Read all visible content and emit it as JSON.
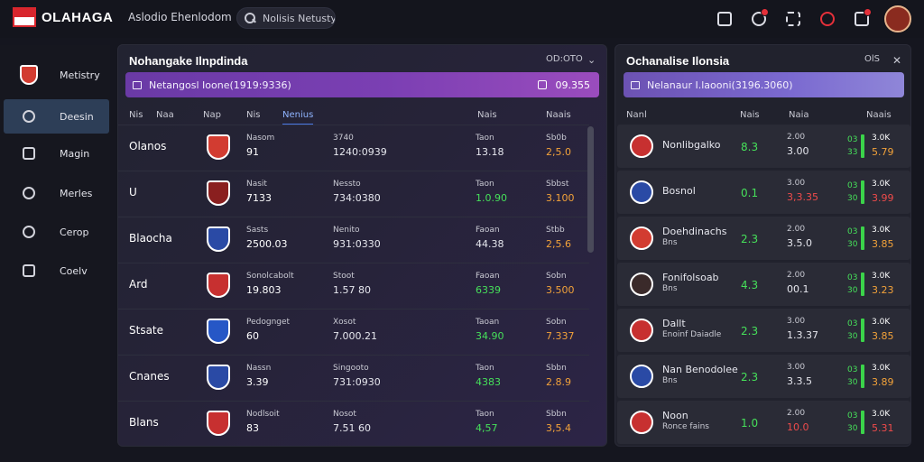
{
  "app": {
    "logo_text": "OLAHAGA",
    "nav_text": "Aslodio Ehenlodom"
  },
  "search": {
    "placeholder": "Nolisis Netusty"
  },
  "sidebar": {
    "items": [
      {
        "label": "Metistry"
      },
      {
        "label": "Deesin"
      },
      {
        "label": "Magin"
      },
      {
        "label": "Merles"
      },
      {
        "label": "Cerop"
      },
      {
        "label": "Coelv"
      }
    ]
  },
  "left_panel": {
    "title": "Nohangake Ilnpdinda",
    "ctrl": "OD:OTO",
    "banner_text": "Netangosl Ioone(1919:9336)",
    "banner_value": "09.355",
    "columns": [
      "Nis",
      "Naa",
      "Nap",
      "Nis",
      "Nenius",
      "Nais",
      "Naais"
    ],
    "rows": [
      {
        "name": "Olanos",
        "t1": "Nasom",
        "t2": "91",
        "l1": "3740",
        "l2": "1240:0939",
        "s1": "Taon",
        "s2": "13.18",
        "o1": "Sb0b",
        "o2": "2,5.0"
      },
      {
        "name": "U",
        "t1": "Nasit",
        "t2": "7133",
        "l1": "Nessto",
        "l2": "734:0380",
        "s1": "Taon",
        "s2": "1.0.90",
        "o1": "Sbbst",
        "o2": "3.100"
      },
      {
        "name": "Blaocha",
        "t1": "Sasts",
        "t2": "2500.03",
        "l1": "Nenito",
        "l2": "931:0330",
        "s1": "Faoan",
        "s2": "44.38",
        "o1": "Stbb",
        "o2": "2,5.6"
      },
      {
        "name": "Ard",
        "t1": "Sonolcabolt",
        "t2": "19.803",
        "l1": "Stoot",
        "l2": "1.57 80",
        "s1": "Faoan",
        "s2": "6339",
        "o1": "Sobn",
        "o2": "3.500"
      },
      {
        "name": "Stsate",
        "t1": "Pedognget",
        "t2": "60",
        "l1": "Xosot",
        "l2": "7.000.21",
        "s1": "Taoan",
        "s2": "34.90",
        "o1": "Sobn",
        "o2": "7.337"
      },
      {
        "name": "Cnanes",
        "t1": "Nassn",
        "t2": "3.39",
        "l1": "Singooto",
        "l2": "731:0930",
        "s1": "Taon",
        "s2": "4383",
        "o1": "Sbbn",
        "o2": "2.8.9"
      },
      {
        "name": "Blans",
        "t1": "Nodlsoit",
        "t2": "83",
        "l1": "Nosot",
        "l2": "7.51 60",
        "s1": "Taon",
        "s2": "4,57",
        "o1": "Sbbn",
        "o2": "3,5.4"
      }
    ]
  },
  "right_panel": {
    "title": "Ochanalise Ilonsia",
    "ctrl": "OlS",
    "banner_text": "Nelanaur I.laooni(3196.3060)",
    "columns": [
      "Nanl",
      "Nais",
      "Naia",
      "Naais"
    ],
    "rows": [
      {
        "name": "Nonlibgalko",
        "sub": "",
        "v1": "8.3",
        "v2a": "2.00",
        "v2b": "3.00",
        "v3a": "3.0K",
        "v3b": "5.79",
        "m1": "03",
        "m2": "33"
      },
      {
        "name": "Bosnol",
        "sub": "",
        "v1": "0.1",
        "v2a": "3.00",
        "v2b": "3,3.35",
        "v3a": "3.0K",
        "v3b": "3.99",
        "m1": "03",
        "m2": "30"
      },
      {
        "name": "Doehdinachs",
        "sub": "Bns",
        "v1": "2.3",
        "v2a": "2.00",
        "v2b": "3.5.0",
        "v3a": "3.0K",
        "v3b": "3.85",
        "m1": "03",
        "m2": "30"
      },
      {
        "name": "Fonifolsoab",
        "sub": "Bns",
        "v1": "4.3",
        "v2a": "2.00",
        "v2b": "00.1",
        "v3a": "3.0K",
        "v3b": "3.23",
        "m1": "03",
        "m2": "30"
      },
      {
        "name": "Dallt",
        "sub": "Enoinf Daiadle",
        "v1": "2.3",
        "v2a": "3.00",
        "v2b": "1.3.37",
        "v3a": "3.0K",
        "v3b": "3.85",
        "m1": "03",
        "m2": "30"
      },
      {
        "name": "Nan Benodolee",
        "sub": "Bns",
        "v1": "2.3",
        "v2a": "3.00",
        "v2b": "3.3.5",
        "v3a": "3.0K",
        "v3b": "3.89",
        "m1": "03",
        "m2": "30"
      },
      {
        "name": "Noon",
        "sub": "Ronce fains",
        "v1": "1.0",
        "v2a": "2.00",
        "v2b": "10.0",
        "v3a": "3.0K",
        "v3b": "5.31",
        "m1": "03",
        "m2": "30"
      }
    ]
  },
  "colors": {
    "accent": "#7b3fb3",
    "green": "#46e05a",
    "orange": "#f2a23a",
    "red": "#ef4b4b"
  },
  "icons": {
    "top": [
      "calendar-icon",
      "stats-icon",
      "grid-icon",
      "ball-icon",
      "notification-icon"
    ],
    "sidebar": [
      "shield-icon",
      "target-icon",
      "chart-icon",
      "network-icon",
      "refresh-icon",
      "lock-icon"
    ]
  }
}
